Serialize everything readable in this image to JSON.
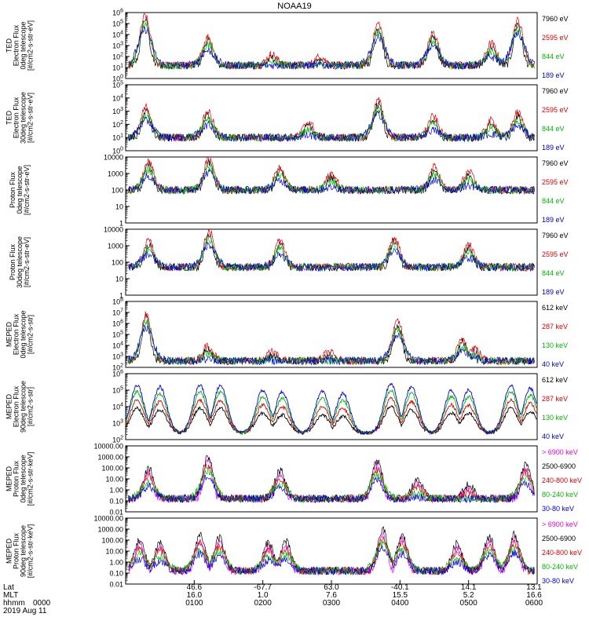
{
  "figure": {
    "title": "NOAA19",
    "date_label": "2019 Aug 11",
    "bottom_row_labels": [
      "Lat",
      "MLT",
      "hhmm"
    ],
    "bottom_first_hhmm": "0000"
  },
  "chart_data": {
    "type": "line",
    "x_axis": {
      "unit": "UT",
      "range_min": [
        0,
        360
      ],
      "ticks": [
        {
          "minute": 60,
          "lat": "46.6",
          "mlt": "16.0",
          "hhmm": "0100"
        },
        {
          "minute": 120,
          "lat": "-67.7",
          "mlt": "1.0",
          "hhmm": "0200"
        },
        {
          "minute": 180,
          "lat": "63.0",
          "mlt": "7.6",
          "hhmm": "0300"
        },
        {
          "minute": 240,
          "lat": "-40.1",
          "mlt": "15.5",
          "hhmm": "0400"
        },
        {
          "minute": 300,
          "lat": "14.1",
          "mlt": "5.2",
          "hhmm": "0500"
        },
        {
          "minute": 360,
          "lat": "13.1",
          "mlt": "16.6",
          "hhmm": "0600"
        }
      ]
    },
    "panels": [
      {
        "ylabel": [
          "TED",
          "Electron Flux",
          "0deg telescope",
          "[#/cm2-s-str-eV]"
        ],
        "yscale": "log",
        "ylim": [
          1,
          1000000
        ],
        "ytick_labels": [
          "10^0",
          "10^1",
          "10^2",
          "10^3",
          "10^4",
          "10^5",
          "10^6"
        ],
        "series": [
          {
            "name": "7960 eV",
            "color": "#000000"
          },
          {
            "name": "2595 eV",
            "color": "#e00000"
          },
          {
            "name": "844 eV",
            "color": "#00bb00"
          },
          {
            "name": "189 eV",
            "color": "#0000dd"
          }
        ],
        "bursts": [
          {
            "center": 17,
            "peak": 5.7
          },
          {
            "center": 72,
            "peak": 3.8
          },
          {
            "center": 128,
            "peak": 2.2
          },
          {
            "center": 170,
            "peak": 2.0
          },
          {
            "center": 221,
            "peak": 5.0
          },
          {
            "center": 269,
            "peak": 4.2
          },
          {
            "center": 320,
            "peak": 3.2
          },
          {
            "center": 343,
            "peak": 5.3
          }
        ]
      },
      {
        "ylabel": [
          "TED",
          "Electron Flux",
          "30deg telescope",
          "[#/cm2-s-str-eV]"
        ],
        "yscale": "log",
        "ylim": [
          1,
          100000
        ],
        "ytick_labels": [
          "10^0",
          "10^1",
          "10^2",
          "10^3",
          "10^4",
          "10^5"
        ],
        "series": [
          {
            "name": "7960 eV",
            "color": "#000000"
          },
          {
            "name": "2595 eV",
            "color": "#e00000"
          },
          {
            "name": "844 eV",
            "color": "#00bb00"
          },
          {
            "name": "189 eV",
            "color": "#0000dd"
          }
        ],
        "bursts": [
          {
            "center": 18,
            "peak": 3.3
          },
          {
            "center": 72,
            "peak": 3.0
          },
          {
            "center": 160,
            "peak": 2.2
          },
          {
            "center": 221,
            "peak": 3.8
          },
          {
            "center": 269,
            "peak": 2.6
          },
          {
            "center": 320,
            "peak": 2.3
          },
          {
            "center": 343,
            "peak": 2.9
          }
        ]
      },
      {
        "ylabel": [
          "Proton Flux",
          "0deg telescope",
          "[#/cm2-s-str-eV]"
        ],
        "yscale": "log",
        "ylim": [
          1,
          10000
        ],
        "ytick_labels": [
          "1",
          "10",
          "100",
          "1000",
          "10000"
        ],
        "series": [
          {
            "name": "7960 eV",
            "color": "#000000"
          },
          {
            "name": "2595 eV",
            "color": "#e00000"
          },
          {
            "name": "844 eV",
            "color": "#00bb00"
          },
          {
            "name": "189 eV",
            "color": "#0000dd"
          }
        ],
        "baseline_log": 2.0,
        "bursts": [
          {
            "center": 20,
            "peak": 3.7
          },
          {
            "center": 73,
            "peak": 3.9
          },
          {
            "center": 135,
            "peak": 3.4
          },
          {
            "center": 180,
            "peak": 3.0
          },
          {
            "center": 270,
            "peak": 3.4
          },
          {
            "center": 300,
            "peak": 3.1
          }
        ]
      },
      {
        "ylabel": [
          "Proton Flux",
          "30deg telescope",
          "[#/cm2-s-str-eV]"
        ],
        "yscale": "log",
        "ylim": [
          1,
          10000
        ],
        "ytick_labels": [
          "1",
          "10",
          "100",
          "1000",
          "10000"
        ],
        "series": [
          {
            "name": "7960 eV",
            "color": "#000000"
          },
          {
            "name": "2595 eV",
            "color": "#e00000"
          },
          {
            "name": "844 eV",
            "color": "#00bb00"
          },
          {
            "name": "189 eV",
            "color": "#0000dd"
          }
        ],
        "baseline_log": 1.7,
        "bursts": [
          {
            "center": 20,
            "peak": 3.3
          },
          {
            "center": 73,
            "peak": 3.9
          },
          {
            "center": 135,
            "peak": 3.3
          },
          {
            "center": 235,
            "peak": 3.5
          },
          {
            "center": 300,
            "peak": 3.1
          }
        ]
      },
      {
        "ylabel": [
          "MEPED",
          "Electron Flux",
          "0deg telescope",
          "[#/cm2-s-str]"
        ],
        "yscale": "log",
        "ylim": [
          100,
          100000000
        ],
        "ytick_labels": [
          "10^2",
          "10^3",
          "10^4",
          "10^5",
          "10^6",
          "10^7",
          "10^8"
        ],
        "series": [
          {
            "name": "612 keV",
            "color": "#000000"
          },
          {
            "name": "287 keV",
            "color": "#e00000"
          },
          {
            "name": "130 keV",
            "color": "#00bb00"
          },
          {
            "name": "40 keV",
            "color": "#0000dd"
          }
        ],
        "baseline_log": 2.6,
        "bursts": [
          {
            "center": 18,
            "peak": 6.8
          },
          {
            "center": 72,
            "peak": 4.0
          },
          {
            "center": 128,
            "peak": 3.4
          },
          {
            "center": 178,
            "peak": 3.4
          },
          {
            "center": 238,
            "peak": 6.2
          },
          {
            "center": 295,
            "peak": 4.6
          },
          {
            "center": 305,
            "peak": 3.8
          }
        ]
      },
      {
        "ylabel": [
          "MEPED",
          "Electron Flux",
          "90deg telescope",
          "[#/cm2-s-str]"
        ],
        "yscale": "log",
        "ylim": [
          100,
          1000000
        ],
        "ytick_labels": [
          "10^2",
          "10^3",
          "10^4",
          "10^5",
          "10^6"
        ],
        "series": [
          {
            "name": "612 keV",
            "color": "#000000"
          },
          {
            "name": "287 keV",
            "color": "#e00000"
          },
          {
            "name": "130 keV",
            "color": "#00bb00"
          },
          {
            "name": "40 keV",
            "color": "#0000dd"
          }
        ],
        "humps": [
          {
            "center": 10,
            "peak": 5.3
          },
          {
            "center": 30,
            "peak": 5.2
          },
          {
            "center": 65,
            "peak": 5.3
          },
          {
            "center": 83,
            "peak": 5.3
          },
          {
            "center": 120,
            "peak": 5.0
          },
          {
            "center": 137,
            "peak": 4.9
          },
          {
            "center": 172,
            "peak": 4.9
          },
          {
            "center": 190,
            "peak": 4.8
          },
          {
            "center": 232,
            "peak": 5.4
          },
          {
            "center": 250,
            "peak": 5.2
          },
          {
            "center": 285,
            "peak": 5.0
          },
          {
            "center": 300,
            "peak": 5.0
          },
          {
            "center": 337,
            "peak": 5.3
          },
          {
            "center": 354,
            "peak": 5.1
          }
        ]
      },
      {
        "ylabel": [
          "MEPED",
          "Proton Flux",
          "0deg telescope",
          "[#/cm2-s-str-keV]"
        ],
        "yscale": "log",
        "ylim": [
          0.01,
          10000
        ],
        "ytick_labels": [
          "0.01",
          "0.10",
          "1.00",
          "10.00",
          "100.00",
          "1000.00",
          "10000.00"
        ],
        "series": [
          {
            "name": "> 6900 keV",
            "color": "#ee00ee"
          },
          {
            "name": "2500-6900",
            "color": "#000000"
          },
          {
            "name": "240-800 keV",
            "color": "#e00000"
          },
          {
            "name": "80-240 keV",
            "color": "#00bb00"
          },
          {
            "name": "30-80 keV",
            "color": "#0000dd"
          }
        ],
        "bursts": [
          {
            "center": 20,
            "peak": 2.0
          },
          {
            "center": 72,
            "peak": 3.0
          },
          {
            "center": 135,
            "peak": 1.8
          },
          {
            "center": 220,
            "peak": 2.6
          },
          {
            "center": 255,
            "peak": 1.0
          },
          {
            "center": 300,
            "peak": 0.5
          },
          {
            "center": 350,
            "peak": 2.3
          }
        ]
      },
      {
        "ylabel": [
          "MEPED",
          "Proton Flux",
          "90deg telescope",
          "[#/cm2-s-str-keV]"
        ],
        "yscale": "log",
        "ylim": [
          0.01,
          10000
        ],
        "ytick_labels": [
          "0.01",
          "0.10",
          "1.00",
          "10.00",
          "100.00",
          "1000.00",
          "10000.00"
        ],
        "series": [
          {
            "name": "> 6900 keV",
            "color": "#ee00ee"
          },
          {
            "name": "2500-6900",
            "color": "#000000"
          },
          {
            "name": "240-800 keV",
            "color": "#e00000"
          },
          {
            "name": "80-240 keV",
            "color": "#00bb00"
          },
          {
            "name": "30-80 keV",
            "color": "#0000dd"
          }
        ],
        "bursts": [
          {
            "center": 12,
            "peak": 2.0
          },
          {
            "center": 30,
            "peak": 1.8
          },
          {
            "center": 65,
            "peak": 2.4
          },
          {
            "center": 82,
            "peak": 2.2
          },
          {
            "center": 125,
            "peak": 1.8
          },
          {
            "center": 140,
            "peak": 1.9
          },
          {
            "center": 225,
            "peak": 2.9
          },
          {
            "center": 242,
            "peak": 2.4
          },
          {
            "center": 290,
            "peak": 1.7
          },
          {
            "center": 318,
            "peak": 2.3
          },
          {
            "center": 340,
            "peak": 2.5
          }
        ]
      }
    ]
  }
}
